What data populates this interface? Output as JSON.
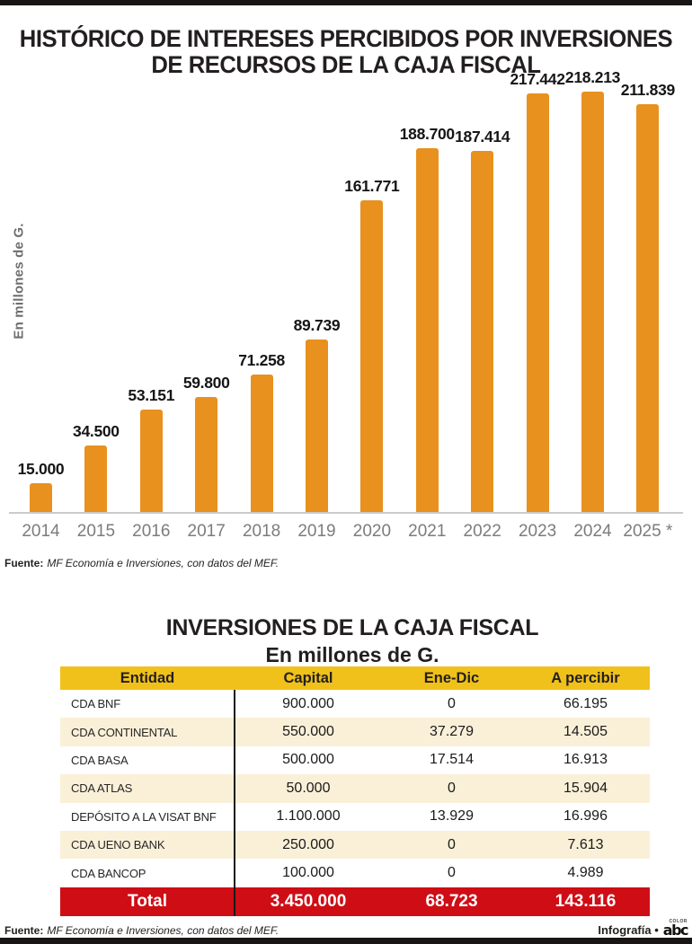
{
  "title_lines": [
    "HISTÓRICO DE INTERESES PERCIBIDOS POR INVERSIONES",
    "DE RECURSOS DE LA CAJA FISCAL"
  ],
  "chart_data": [
    {
      "type": "bar",
      "title": "HISTÓRICO DE INTERESES PERCIBIDOS POR INVERSIONES DE RECURSOS DE LA CAJA FISCAL",
      "categories": [
        "2014",
        "2015",
        "2016",
        "2017",
        "2018",
        "2019",
        "2020",
        "2021",
        "2022",
        "2023",
        "2024",
        "2025 *"
      ],
      "values": [
        15000,
        34500,
        53151,
        59800,
        71258,
        89739,
        161771,
        188700,
        187414,
        217442,
        218213,
        211839
      ],
      "value_labels": [
        "15.000",
        "34.500",
        "53.151",
        "59.800",
        "71.258",
        "89.739",
        "161.771",
        "188.700",
        "187.414",
        "217.442",
        "218.213",
        "211.839"
      ],
      "xlabel": "",
      "ylabel": "En millones de G.",
      "ylim": [
        0,
        230000
      ],
      "grid": false,
      "legend": "none",
      "bar_color": "#E8911E",
      "source_label": "Fuente:",
      "source_text": "MF Economía e Inversiones, con datos del MEF."
    },
    {
      "type": "table",
      "title": "INVERSIONES DE LA CAJA FISCAL",
      "subtitle": "En millones de G.",
      "columns": [
        "Entidad",
        "Capital",
        "Ene-Dic",
        "A percibir"
      ],
      "rows": [
        [
          "CDA BNF",
          "900.000",
          "0",
          "66.195"
        ],
        [
          "CDA CONTINENTAL",
          "550.000",
          "37.279",
          "14.505"
        ],
        [
          "CDA BASA",
          "500.000",
          "17.514",
          "16.913"
        ],
        [
          "CDA ATLAS",
          "50.000",
          "0",
          "15.904"
        ],
        [
          "DEPÓSITO A LA VISAT BNF",
          "1.100.000",
          "13.929",
          "16.996"
        ],
        [
          "CDA UENO BANK",
          "250.000",
          "0",
          "7.613"
        ],
        [
          "CDA BANCOP",
          "100.000",
          "0",
          "4.989"
        ]
      ],
      "total_row": [
        "Total",
        "3.450.000",
        "68.723",
        "143.116"
      ],
      "colors": {
        "header_bg": "#F0C11A",
        "alt_row_bg": "#FAF0D8",
        "total_bg": "#CF0D15",
        "total_text": "#FFFFFF"
      },
      "source_label": "Fuente:",
      "source_text": "MF Economía e Inversiones, con datos del MEF."
    }
  ],
  "footer": {
    "credit_label": "Infografía •",
    "logo_text": "abc",
    "logo_top_text": "Color"
  }
}
